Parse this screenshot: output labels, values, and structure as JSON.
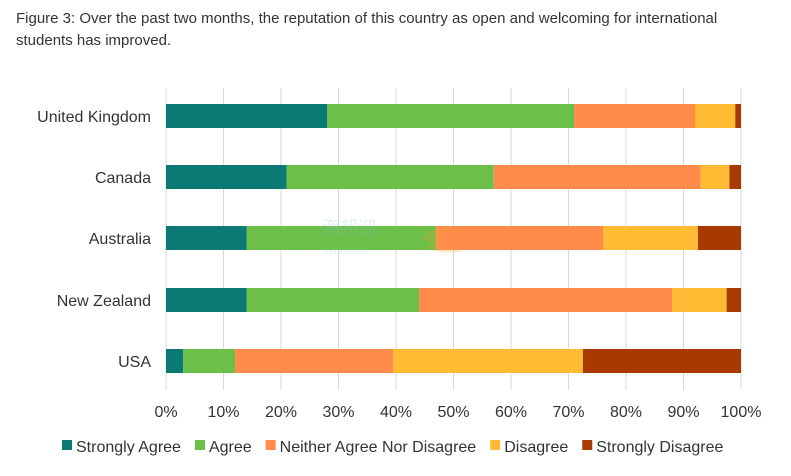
{
  "figure_title": "Figure 3: Over the past two months, the reputation of this country as open and welcoming for international students has improved.",
  "watermark_text": "Hinabian",
  "chart_data": {
    "type": "bar",
    "orientation": "horizontal",
    "stacked": true,
    "categories": [
      "United Kingdom",
      "Canada",
      "Australia",
      "New Zealand",
      "USA"
    ],
    "series": [
      {
        "name": "Strongly Agree",
        "color": "#0b7a75",
        "values": [
          28,
          21,
          14,
          14,
          3
        ]
      },
      {
        "name": "Agree",
        "color": "#6cc04a",
        "values": [
          43,
          36,
          33,
          30,
          9
        ]
      },
      {
        "name": "Neither Agree Nor Disagree",
        "color": "#ff8c4a",
        "values": [
          21,
          36,
          29,
          44,
          27.5
        ]
      },
      {
        "name": "Disagree",
        "color": "#ffbb33",
        "values": [
          7,
          5,
          16.5,
          9.5,
          33
        ]
      },
      {
        "name": "Strongly Disagree",
        "color": "#a83a00",
        "values": [
          1,
          2,
          7.5,
          2.5,
          27.5
        ]
      }
    ],
    "xlim": [
      0,
      100
    ],
    "xticks": [
      "0%",
      "10%",
      "20%",
      "30%",
      "40%",
      "50%",
      "60%",
      "70%",
      "80%",
      "90%",
      "100%"
    ],
    "grid": true,
    "legend_position": "bottom"
  }
}
